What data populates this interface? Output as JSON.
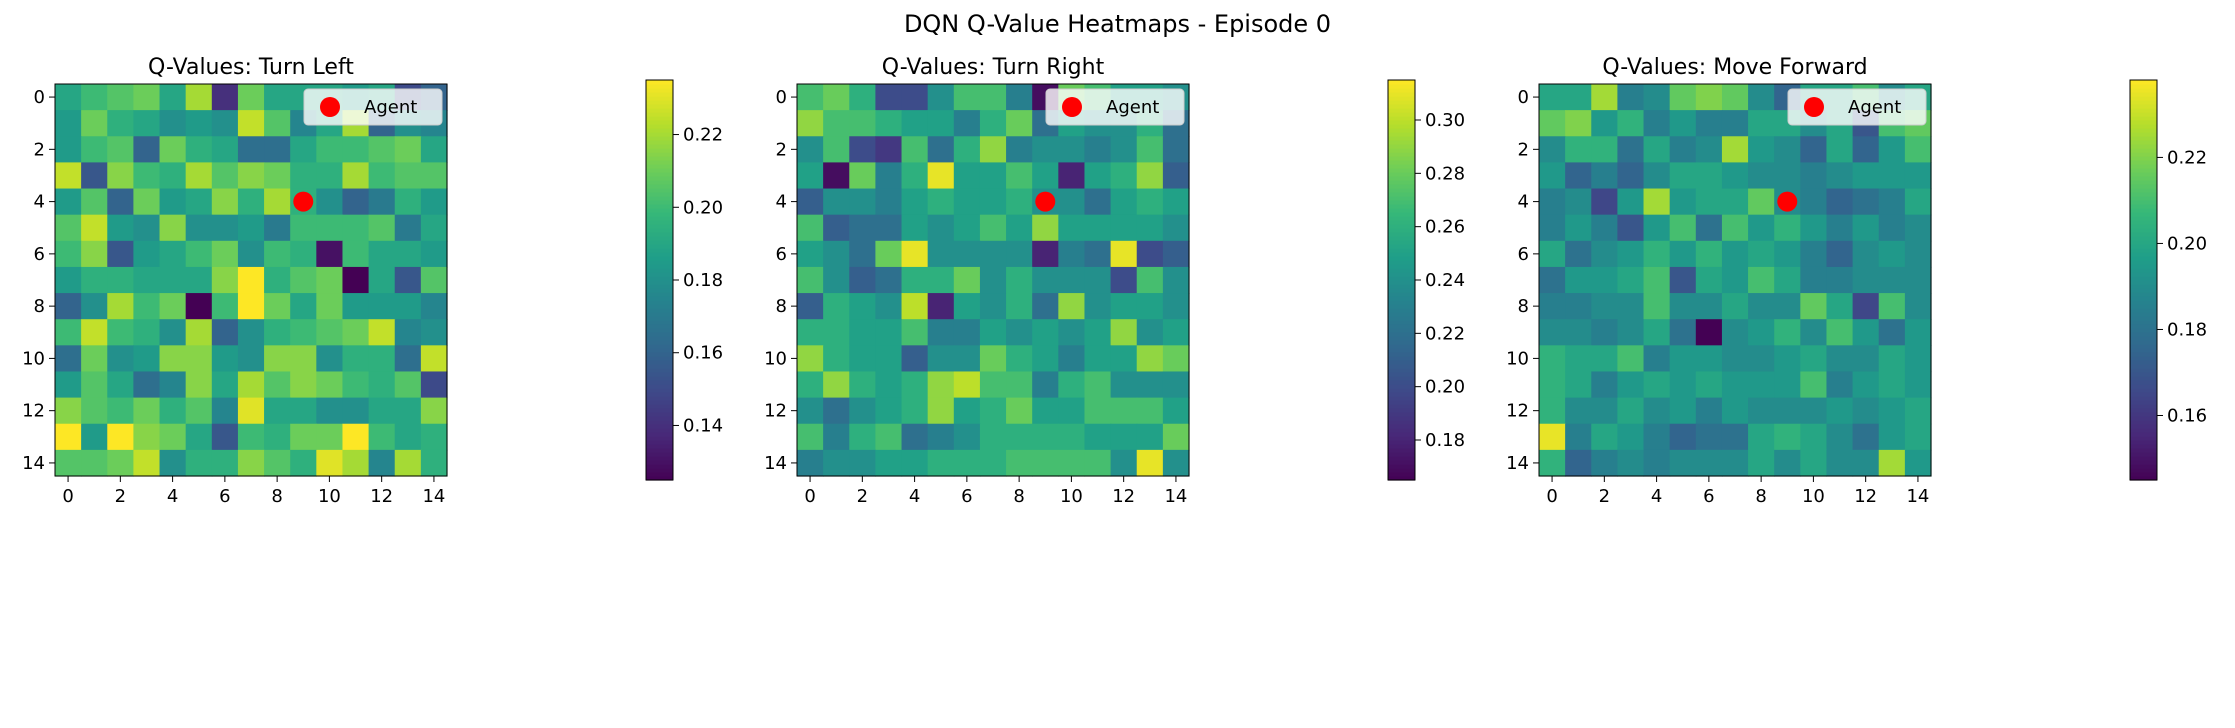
{
  "figure": {
    "suptitle": "DQN Q-Value Heatmaps - Episode 0"
  },
  "chart_data": [
    {
      "type": "heatmap",
      "title": "Q-Values: Turn Left",
      "colormap": "viridis",
      "rows": 15,
      "cols": 15,
      "x_ticks": [
        0,
        2,
        4,
        6,
        8,
        10,
        12,
        14
      ],
      "y_ticks": [
        0,
        2,
        4,
        6,
        8,
        10,
        12,
        14
      ],
      "colorbar": {
        "min": 0.125,
        "max": 0.235,
        "ticks": [
          0.14,
          0.16,
          0.18,
          0.2,
          0.22
        ],
        "tick_labels": [
          "0.14",
          "0.16",
          "0.18",
          "0.20",
          "0.22"
        ]
      },
      "agent": {
        "x": 9,
        "y": 4,
        "color": "#ff0000"
      },
      "legend": {
        "label": "Agent",
        "position": "upper right"
      },
      "values": [
        [
          0.19,
          0.2,
          0.205,
          0.21,
          0.19,
          0.22,
          0.14,
          0.21,
          0.19,
          0.19,
          0.19,
          0.185,
          0.19,
          0.15,
          0.16
        ],
        [
          0.185,
          0.21,
          0.195,
          0.19,
          0.18,
          0.185,
          0.18,
          0.225,
          0.205,
          0.175,
          0.19,
          0.22,
          0.16,
          0.18,
          0.175
        ],
        [
          0.185,
          0.2,
          0.205,
          0.16,
          0.21,
          0.195,
          0.19,
          0.165,
          0.165,
          0.19,
          0.2,
          0.2,
          0.205,
          0.21,
          0.19
        ],
        [
          0.225,
          0.155,
          0.215,
          0.2,
          0.195,
          0.22,
          0.205,
          0.215,
          0.21,
          0.195,
          0.195,
          0.22,
          0.2,
          0.205,
          0.205
        ],
        [
          0.185,
          0.205,
          0.16,
          0.21,
          0.185,
          0.19,
          0.215,
          0.195,
          0.22,
          0.195,
          0.18,
          0.16,
          0.17,
          0.195,
          0.185
        ],
        [
          0.205,
          0.225,
          0.185,
          0.18,
          0.215,
          0.18,
          0.18,
          0.185,
          0.17,
          0.2,
          0.2,
          0.2,
          0.205,
          0.17,
          0.19
        ],
        [
          0.2,
          0.215,
          0.155,
          0.185,
          0.19,
          0.2,
          0.21,
          0.18,
          0.2,
          0.195,
          0.13,
          0.2,
          0.19,
          0.19,
          0.185
        ],
        [
          0.185,
          0.195,
          0.195,
          0.19,
          0.19,
          0.19,
          0.215,
          0.235,
          0.195,
          0.205,
          0.21,
          0.125,
          0.19,
          0.155,
          0.205
        ],
        [
          0.16,
          0.18,
          0.22,
          0.2,
          0.21,
          0.125,
          0.2,
          0.235,
          0.21,
          0.19,
          0.21,
          0.185,
          0.185,
          0.185,
          0.175
        ],
        [
          0.2,
          0.225,
          0.2,
          0.195,
          0.18,
          0.22,
          0.16,
          0.18,
          0.195,
          0.2,
          0.205,
          0.21,
          0.225,
          0.175,
          0.18
        ],
        [
          0.165,
          0.21,
          0.18,
          0.185,
          0.215,
          0.215,
          0.185,
          0.18,
          0.215,
          0.215,
          0.18,
          0.195,
          0.195,
          0.165,
          0.225
        ],
        [
          0.185,
          0.205,
          0.19,
          0.165,
          0.175,
          0.215,
          0.19,
          0.22,
          0.205,
          0.215,
          0.21,
          0.2,
          0.195,
          0.205,
          0.15
        ],
        [
          0.215,
          0.205,
          0.2,
          0.21,
          0.195,
          0.205,
          0.175,
          0.23,
          0.19,
          0.19,
          0.18,
          0.18,
          0.19,
          0.19,
          0.215
        ],
        [
          0.235,
          0.185,
          0.235,
          0.215,
          0.21,
          0.19,
          0.155,
          0.2,
          0.195,
          0.21,
          0.21,
          0.235,
          0.2,
          0.19,
          0.195
        ],
        [
          0.205,
          0.205,
          0.21,
          0.225,
          0.18,
          0.195,
          0.195,
          0.215,
          0.205,
          0.195,
          0.23,
          0.22,
          0.175,
          0.22,
          0.195
        ]
      ]
    },
    {
      "type": "heatmap",
      "title": "Q-Values: Turn Right",
      "colormap": "viridis",
      "rows": 15,
      "cols": 15,
      "x_ticks": [
        0,
        2,
        4,
        6,
        8,
        10,
        12,
        14
      ],
      "y_ticks": [
        0,
        2,
        4,
        6,
        8,
        10,
        12,
        14
      ],
      "colorbar": {
        "min": 0.165,
        "max": 0.315,
        "ticks": [
          0.18,
          0.2,
          0.22,
          0.24,
          0.26,
          0.28,
          0.3
        ],
        "tick_labels": [
          "0.18",
          "0.20",
          "0.22",
          "0.24",
          "0.26",
          "0.28",
          "0.30"
        ]
      },
      "agent": {
        "x": 9,
        "y": 4,
        "color": "#ff0000"
      },
      "legend": {
        "label": "Agent",
        "position": "upper right"
      },
      "values": [
        [
          0.27,
          0.28,
          0.26,
          0.2,
          0.2,
          0.24,
          0.27,
          0.27,
          0.23,
          0.17,
          0.28,
          0.27,
          0.25,
          0.25,
          0.24
        ],
        [
          0.29,
          0.27,
          0.27,
          0.26,
          0.25,
          0.25,
          0.23,
          0.26,
          0.28,
          0.22,
          0.25,
          0.24,
          0.24,
          0.26,
          0.22
        ],
        [
          0.24,
          0.27,
          0.2,
          0.19,
          0.27,
          0.22,
          0.26,
          0.29,
          0.23,
          0.24,
          0.24,
          0.23,
          0.24,
          0.27,
          0.22
        ],
        [
          0.25,
          0.17,
          0.28,
          0.23,
          0.26,
          0.31,
          0.25,
          0.25,
          0.27,
          0.25,
          0.18,
          0.25,
          0.26,
          0.29,
          0.21
        ],
        [
          0.21,
          0.24,
          0.24,
          0.23,
          0.25,
          0.26,
          0.25,
          0.25,
          0.26,
          0.24,
          0.24,
          0.22,
          0.25,
          0.26,
          0.25
        ],
        [
          0.27,
          0.21,
          0.22,
          0.22,
          0.25,
          0.24,
          0.25,
          0.27,
          0.25,
          0.29,
          0.25,
          0.25,
          0.25,
          0.25,
          0.24
        ],
        [
          0.25,
          0.24,
          0.22,
          0.28,
          0.31,
          0.24,
          0.24,
          0.24,
          0.24,
          0.18,
          0.23,
          0.22,
          0.31,
          0.2,
          0.21
        ],
        [
          0.27,
          0.24,
          0.21,
          0.22,
          0.26,
          0.26,
          0.28,
          0.24,
          0.26,
          0.24,
          0.24,
          0.24,
          0.2,
          0.27,
          0.24
        ],
        [
          0.21,
          0.26,
          0.25,
          0.24,
          0.3,
          0.18,
          0.25,
          0.24,
          0.26,
          0.22,
          0.29,
          0.24,
          0.25,
          0.25,
          0.24
        ],
        [
          0.26,
          0.26,
          0.25,
          0.25,
          0.27,
          0.23,
          0.23,
          0.25,
          0.24,
          0.25,
          0.24,
          0.25,
          0.29,
          0.24,
          0.25
        ],
        [
          0.29,
          0.26,
          0.25,
          0.25,
          0.21,
          0.24,
          0.24,
          0.28,
          0.26,
          0.25,
          0.23,
          0.25,
          0.25,
          0.29,
          0.28
        ],
        [
          0.26,
          0.29,
          0.26,
          0.25,
          0.26,
          0.29,
          0.3,
          0.27,
          0.27,
          0.23,
          0.26,
          0.27,
          0.24,
          0.24,
          0.24
        ],
        [
          0.24,
          0.22,
          0.24,
          0.25,
          0.26,
          0.29,
          0.25,
          0.26,
          0.28,
          0.25,
          0.25,
          0.27,
          0.27,
          0.27,
          0.25
        ],
        [
          0.27,
          0.23,
          0.26,
          0.27,
          0.22,
          0.23,
          0.24,
          0.26,
          0.26,
          0.26,
          0.26,
          0.25,
          0.25,
          0.25,
          0.28
        ],
        [
          0.23,
          0.24,
          0.24,
          0.25,
          0.25,
          0.26,
          0.26,
          0.26,
          0.27,
          0.27,
          0.27,
          0.27,
          0.24,
          0.31,
          0.24
        ]
      ]
    },
    {
      "type": "heatmap",
      "title": "Q-Values: Move Forward",
      "colormap": "viridis",
      "rows": 15,
      "cols": 15,
      "x_ticks": [
        0,
        2,
        4,
        6,
        8,
        10,
        12,
        14
      ],
      "y_ticks": [
        0,
        2,
        4,
        6,
        8,
        10,
        12,
        14
      ],
      "colorbar": {
        "min": 0.145,
        "max": 0.238,
        "ticks": [
          0.16,
          0.18,
          0.2,
          0.22
        ],
        "tick_labels": [
          "0.16",
          "0.18",
          "0.20",
          "0.22"
        ]
      },
      "agent": {
        "x": 9,
        "y": 4,
        "color": "#ff0000"
      },
      "legend": {
        "label": "Agent",
        "position": "upper right"
      },
      "values": [
        [
          0.2,
          0.2,
          0.225,
          0.185,
          0.19,
          0.215,
          0.22,
          0.215,
          0.19,
          0.175,
          0.2,
          0.2,
          0.21,
          0.19,
          0.2
        ],
        [
          0.215,
          0.22,
          0.195,
          0.205,
          0.185,
          0.195,
          0.185,
          0.185,
          0.2,
          0.2,
          0.19,
          0.2,
          0.17,
          0.21,
          0.215
        ],
        [
          0.19,
          0.205,
          0.205,
          0.18,
          0.2,
          0.185,
          0.19,
          0.225,
          0.195,
          0.19,
          0.175,
          0.2,
          0.175,
          0.195,
          0.21
        ],
        [
          0.195,
          0.175,
          0.185,
          0.175,
          0.19,
          0.2,
          0.2,
          0.195,
          0.19,
          0.19,
          0.185,
          0.19,
          0.195,
          0.195,
          0.195
        ],
        [
          0.185,
          0.19,
          0.165,
          0.195,
          0.225,
          0.195,
          0.2,
          0.2,
          0.215,
          0.19,
          0.185,
          0.175,
          0.18,
          0.185,
          0.2
        ],
        [
          0.185,
          0.195,
          0.185,
          0.17,
          0.195,
          0.21,
          0.18,
          0.21,
          0.195,
          0.205,
          0.195,
          0.185,
          0.195,
          0.185,
          0.19
        ],
        [
          0.2,
          0.18,
          0.19,
          0.195,
          0.205,
          0.195,
          0.205,
          0.195,
          0.2,
          0.195,
          0.185,
          0.175,
          0.19,
          0.195,
          0.19
        ],
        [
          0.18,
          0.195,
          0.195,
          0.2,
          0.21,
          0.17,
          0.2,
          0.195,
          0.21,
          0.2,
          0.185,
          0.185,
          0.19,
          0.19,
          0.19
        ],
        [
          0.185,
          0.185,
          0.19,
          0.19,
          0.21,
          0.19,
          0.19,
          0.2,
          0.19,
          0.19,
          0.215,
          0.2,
          0.165,
          0.21,
          0.19
        ],
        [
          0.19,
          0.19,
          0.185,
          0.19,
          0.2,
          0.18,
          0.145,
          0.19,
          0.195,
          0.205,
          0.19,
          0.21,
          0.195,
          0.18,
          0.195
        ],
        [
          0.205,
          0.2,
          0.2,
          0.21,
          0.185,
          0.195,
          0.195,
          0.19,
          0.19,
          0.195,
          0.2,
          0.19,
          0.19,
          0.2,
          0.195
        ],
        [
          0.205,
          0.2,
          0.185,
          0.195,
          0.2,
          0.195,
          0.2,
          0.195,
          0.195,
          0.195,
          0.21,
          0.185,
          0.195,
          0.2,
          0.195
        ],
        [
          0.205,
          0.19,
          0.19,
          0.2,
          0.19,
          0.195,
          0.185,
          0.195,
          0.19,
          0.19,
          0.19,
          0.195,
          0.19,
          0.195,
          0.2
        ],
        [
          0.235,
          0.185,
          0.2,
          0.195,
          0.185,
          0.175,
          0.18,
          0.18,
          0.2,
          0.205,
          0.2,
          0.19,
          0.18,
          0.195,
          0.2
        ],
        [
          0.205,
          0.175,
          0.185,
          0.19,
          0.185,
          0.19,
          0.19,
          0.19,
          0.2,
          0.19,
          0.2,
          0.19,
          0.19,
          0.225,
          0.195
        ]
      ]
    }
  ]
}
